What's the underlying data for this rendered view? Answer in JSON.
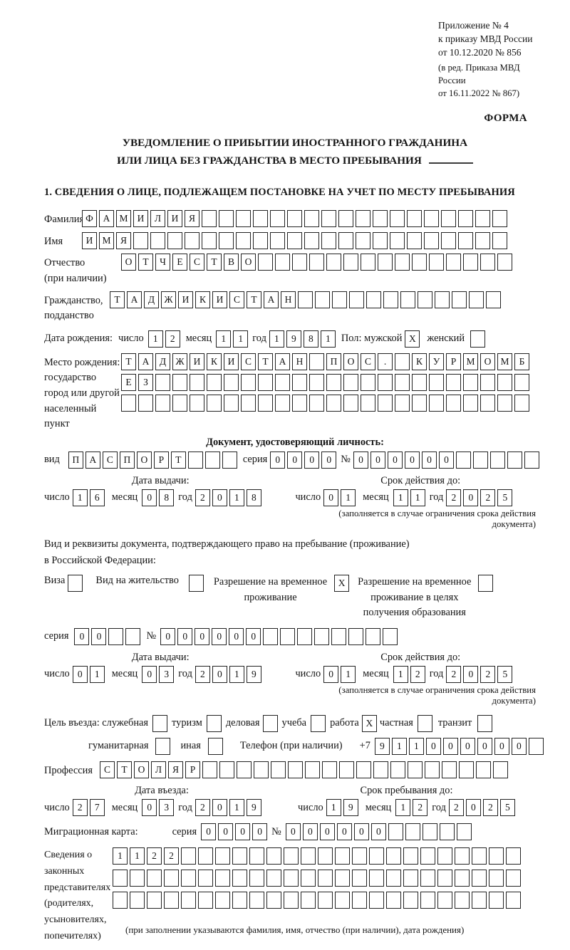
{
  "header": {
    "appendix_lines": [
      "Приложение № 4",
      "к приказу МВД России",
      "от 10.12.2020 № 856"
    ],
    "revision_lines": [
      "(в ред. Приказа МВД России",
      "от 16.11.2022 № 867)"
    ],
    "form_label": "ФОРМА"
  },
  "title": {
    "line1": "УВЕДОМЛЕНИЕ О ПРИБЫТИИ ИНОСТРАННОГО ГРАЖДАНИНА",
    "line2": "ИЛИ ЛИЦА БЕЗ ГРАЖДАНСТВА В МЕСТО ПРЕБЫВАНИЯ"
  },
  "section1_heading": "1. СВЕДЕНИЯ О ЛИЦЕ, ПОДЛЕЖАЩЕМ ПОСТАНОВКЕ НА УЧЕТ ПО МЕСТУ ПРЕБЫВАНИЯ",
  "labels": {
    "day": "число",
    "month": "месяц",
    "year": "год"
  },
  "person": {
    "surname": {
      "label": "Фамилия",
      "value": "ФАМИЛИЯ",
      "len": 25
    },
    "given_name": {
      "label": "Имя",
      "value": "ИМЯ",
      "len": 25
    },
    "patronymic": {
      "label_line1": "Отчество",
      "label_line2": "(при наличии)",
      "value": "ОТЧЕСТВО",
      "len": 23
    },
    "citizenship": {
      "label_line1": "Гражданство,",
      "label_line2": "подданство",
      "value": "ТАДЖИКИСТАН",
      "len": 23
    },
    "birth_date": {
      "label": "Дата рождения:",
      "day": {
        "value": "12",
        "len": 2
      },
      "month": {
        "value": "11",
        "len": 2
      },
      "year": {
        "value": "1981",
        "len": 4
      },
      "sex_label": "Пол: мужской",
      "male_box": {
        "value": "X",
        "len": 1
      },
      "female_label": "женский",
      "female_box": {
        "value": "",
        "len": 1
      }
    },
    "birth_place": {
      "label_lines": [
        "Место рождения:",
        "государство",
        "город или другой",
        "населенный пункт"
      ],
      "row1": {
        "value": "ТАДЖИКИСТАН ПОС. КУРМОМБ",
        "len": 24
      },
      "row2": {
        "value": "ЕЗ",
        "len": 24
      },
      "row3": {
        "value": "",
        "len": 24
      }
    }
  },
  "identity_doc": {
    "heading": "Документ, удостоверяющий личность:",
    "type_label": "вид",
    "type": {
      "value": "ПАСПОРТ",
      "len": 10
    },
    "series_label": "серия",
    "series": {
      "value": "0000",
      "len": 4
    },
    "number_label": "№",
    "number": {
      "value": "000000",
      "len": 11
    },
    "issue_heading": "Дата выдачи:",
    "issue": {
      "day": {
        "value": "16",
        "len": 2
      },
      "month": {
        "value": "08",
        "len": 2
      },
      "year": {
        "value": "2018",
        "len": 4
      }
    },
    "valid_heading": "Срок действия до:",
    "valid": {
      "day": {
        "value": "01",
        "len": 2
      },
      "month": {
        "value": "11",
        "len": 2
      },
      "year": {
        "value": "2025",
        "len": 4
      }
    },
    "note": "(заполняется в случае ограничения срока действия документа)"
  },
  "residence_doc": {
    "intro1": "Вид и реквизиты документа, подтверждающего право на пребывание (проживание)",
    "intro2": "в Российской Федерации:",
    "visa_label": "Виза",
    "visa_box": {
      "value": "",
      "len": 1
    },
    "permit_label": "Вид на жительство",
    "permit_box": {
      "value": "",
      "len": 1
    },
    "temp_lines": [
      "Разрешение на временное",
      "проживание"
    ],
    "temp_box": {
      "value": "X",
      "len": 1
    },
    "edu_lines": [
      "Разрешение на временное",
      "проживание в целях",
      "получения образования"
    ],
    "edu_box": {
      "value": "",
      "len": 1
    },
    "series_label": "серия",
    "series": {
      "value": "00",
      "len": 4
    },
    "number_label": "№",
    "number": {
      "value": "000000",
      "len": 14
    },
    "issue_heading": "Дата выдачи:",
    "issue": {
      "day": {
        "value": "01",
        "len": 2
      },
      "month": {
        "value": "03",
        "len": 2
      },
      "year": {
        "value": "2019",
        "len": 4
      }
    },
    "valid_heading": "Срок действия до:",
    "valid": {
      "day": {
        "value": "01",
        "len": 2
      },
      "month": {
        "value": "12",
        "len": 2
      },
      "year": {
        "value": "2025",
        "len": 4
      }
    },
    "note": "(заполняется в случае ограничения срока действия документа)"
  },
  "visit": {
    "purpose_label": "Цель въезда: служебная",
    "opt_sluzhebnaya_box": {
      "value": "",
      "len": 1
    },
    "opt_turizm": "туризм",
    "opt_turizm_box": {
      "value": "",
      "len": 1
    },
    "opt_delovaya": "деловая",
    "opt_delovaya_box": {
      "value": "",
      "len": 1
    },
    "opt_ucheba": "учеба",
    "opt_ucheba_box": {
      "value": "",
      "len": 1
    },
    "opt_rabota": "работа",
    "opt_rabota_box": {
      "value": "X",
      "len": 1
    },
    "opt_chastnaya": "частная",
    "opt_chastnaya_box": {
      "value": "",
      "len": 1
    },
    "opt_tranzit": "транзит",
    "opt_tranzit_box": {
      "value": "",
      "len": 1
    },
    "opt_gumanitarnaya": "гуманитарная",
    "opt_gumanitarnaya_box": {
      "value": "",
      "len": 1
    },
    "opt_inaya": "иная",
    "opt_inaya_box": {
      "value": "",
      "len": 1
    },
    "phone_label": "Телефон (при наличии)",
    "phone_prefix": "+7",
    "phone": {
      "value": "911000000",
      "len": 10
    },
    "profession_label": "Профессия",
    "profession": {
      "value": "СТОЛЯР",
      "len": 24
    },
    "entry_heading": "Дата въезда:",
    "entry": {
      "day": {
        "value": "27",
        "len": 2
      },
      "month": {
        "value": "03",
        "len": 2
      },
      "year": {
        "value": "2019",
        "len": 4
      }
    },
    "stay_heading": "Срок пребывания до:",
    "stay": {
      "day": {
        "value": "19",
        "len": 2
      },
      "month": {
        "value": "12",
        "len": 2
      },
      "year": {
        "value": "2025",
        "len": 4
      }
    },
    "migration_label": "Миграционная карта:",
    "migration_series_label": "серия",
    "migration_series": {
      "value": "0000",
      "len": 4
    },
    "migration_number_label": "№",
    "migration_number": {
      "value": "000000",
      "len": 11
    }
  },
  "representatives": {
    "label_lines": [
      "Сведения о",
      "законных",
      "представителях",
      "(родителях,",
      "усыновителях,",
      "попечителях)"
    ],
    "row1": {
      "value": "1122",
      "len": 24
    },
    "row2": {
      "value": "",
      "len": 24
    },
    "row3": {
      "value": "",
      "len": 24
    },
    "note": "(при заполнении указываются фамилия, имя, отчество (при наличии), дата рождения)"
  }
}
